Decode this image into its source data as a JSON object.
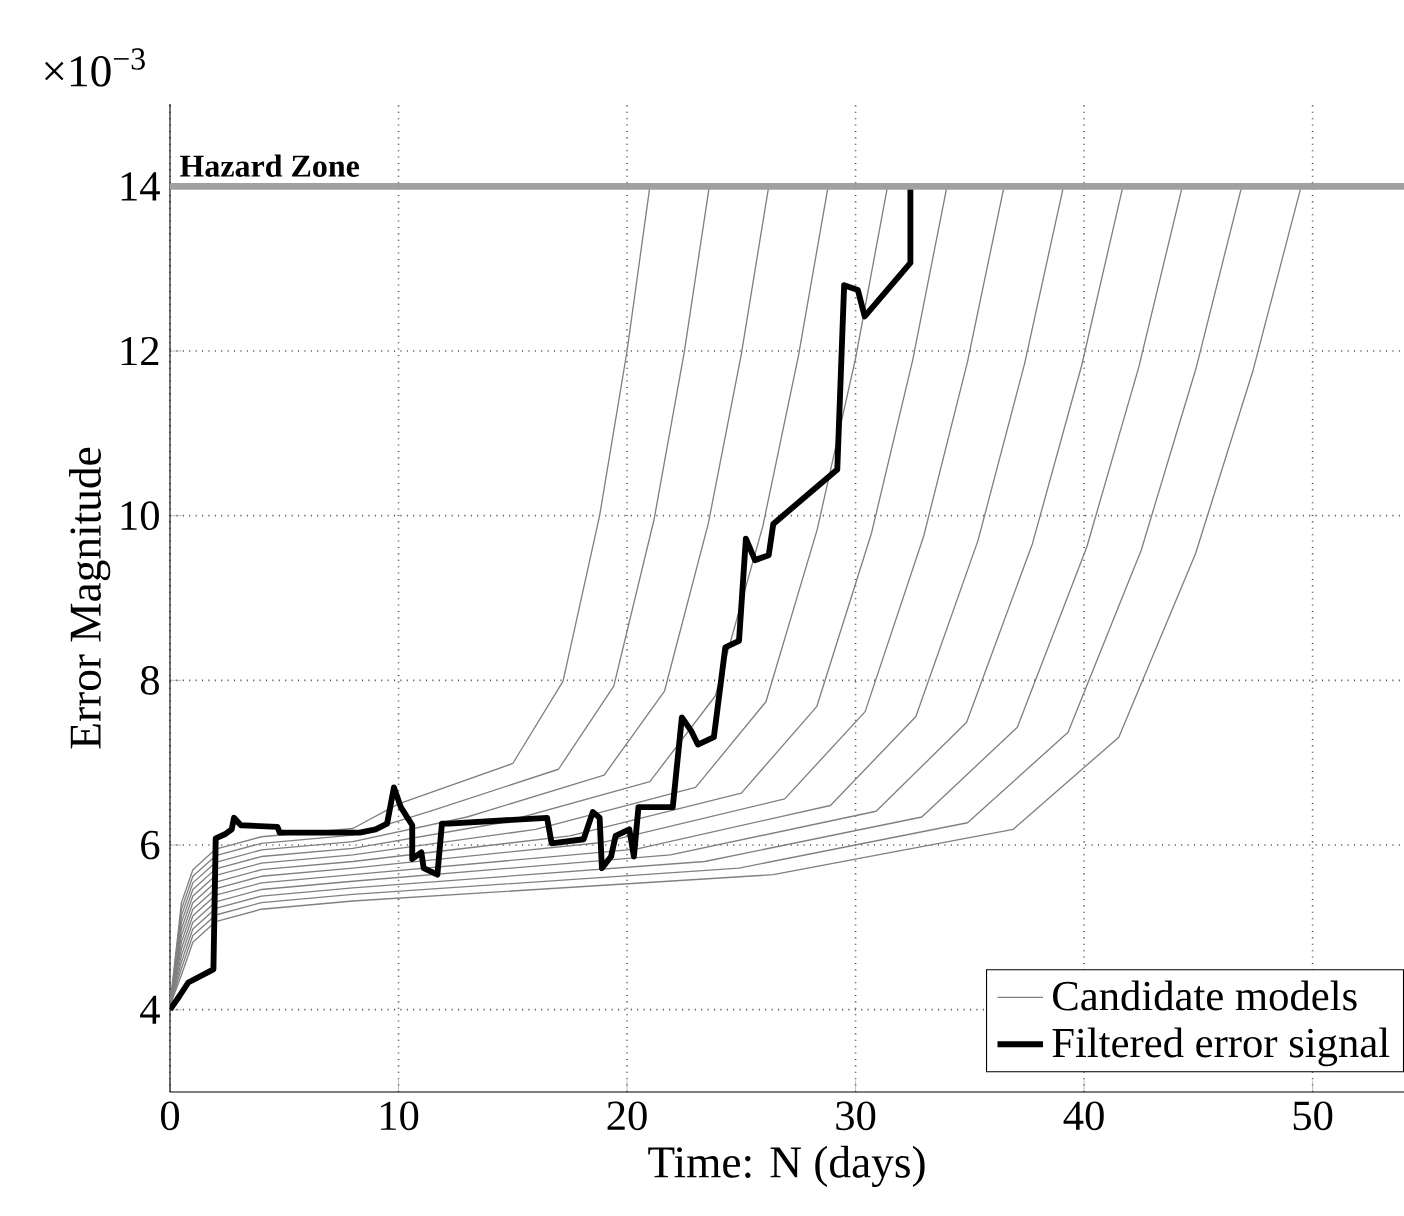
{
  "chart_data": {
    "type": "line",
    "xlabel": "Time: N (days)",
    "ylabel": "Error Magnitude",
    "annotations": [
      "×10$^{−3}$"
    ],
    "xlim": [
      0,
      54
    ],
    "ylim": [
      3,
      15
    ],
    "xticks": [
      0,
      10,
      20,
      30,
      40,
      50
    ],
    "yticks": [
      4,
      6,
      8,
      10,
      12,
      14
    ],
    "grid": true,
    "legend": "bottom right",
    "line_style": "solid",
    "marker": "none",
    "ref_lines": [
      {
        "axis": "y",
        "value": 14,
        "label": "Hazard Zone",
        "color": "#a0a0a0"
      }
    ],
    "series": [
      {
        "name": "Candidate models",
        "color": "#808080",
        "x": [
          0,
          0.5,
          1,
          2,
          4,
          8,
          10,
          15,
          17.2,
          18.8,
          20,
          21
        ],
        "values": [
          4.05,
          5.3,
          5.7,
          5.95,
          6.1,
          6.2,
          6.5,
          6.99,
          7.99,
          10.0,
          12.0,
          14
        ]
      },
      {
        "color": "#808080",
        "x": [
          0,
          0.5,
          1,
          2,
          4,
          8,
          11.5,
          17.0,
          19.42,
          21.18,
          22.5,
          23.6
        ],
        "values": [
          4.05,
          5.22,
          5.62,
          5.87,
          6.02,
          6.12,
          6.42,
          6.92,
          7.93,
          9.95,
          11.98,
          14
        ]
      },
      {
        "color": "#808080",
        "x": [
          0,
          0.5,
          1,
          2,
          4,
          8,
          13.0,
          19.0,
          21.64,
          23.56,
          25.0,
          26.2
        ],
        "values": [
          4.05,
          5.14,
          5.54,
          5.79,
          5.94,
          6.04,
          6.34,
          6.85,
          7.87,
          9.91,
          11.96,
          14
        ]
      },
      {
        "color": "#808080",
        "x": [
          0,
          0.5,
          1,
          2,
          4,
          8,
          14.5,
          21.0,
          23.86,
          25.94,
          27.5,
          28.8
        ],
        "values": [
          4.05,
          5.06,
          5.46,
          5.71,
          5.86,
          5.96,
          6.27,
          6.77,
          7.81,
          9.87,
          11.94,
          14
        ]
      },
      {
        "color": "#808080",
        "x": [
          0,
          0.5,
          1,
          2,
          4,
          8,
          16.0,
          23.0,
          26.08,
          28.32,
          30.0,
          31.4
        ],
        "values": [
          4.05,
          4.98,
          5.38,
          5.63,
          5.78,
          5.88,
          6.19,
          6.7,
          7.74,
          9.83,
          11.91,
          14
        ]
      },
      {
        "color": "#808080",
        "x": [
          0,
          0.5,
          1,
          2,
          4,
          8,
          17.5,
          25.0,
          28.3,
          30.7,
          32.5,
          34
        ],
        "values": [
          4.05,
          4.9,
          5.3,
          5.55,
          5.7,
          5.8,
          6.11,
          6.63,
          7.68,
          9.79,
          11.89,
          14
        ]
      },
      {
        "color": "#808080",
        "x": [
          0,
          0.5,
          1,
          2,
          4,
          8,
          18.9,
          26.9,
          30.42,
          32.98,
          34.9,
          36.5
        ],
        "values": [
          4.05,
          4.82,
          5.22,
          5.47,
          5.62,
          5.72,
          6.03,
          6.56,
          7.62,
          9.75,
          11.87,
          14
        ]
      },
      {
        "color": "#808080",
        "x": [
          0,
          0.5,
          1,
          2,
          4,
          8,
          20.4,
          28.9,
          32.64,
          35.36,
          37.4,
          39.1
        ],
        "values": [
          4.05,
          4.74,
          5.14,
          5.39,
          5.54,
          5.64,
          5.95,
          6.48,
          7.56,
          9.7,
          11.85,
          14
        ]
      },
      {
        "color": "#808080",
        "x": [
          0,
          0.5,
          1,
          2,
          4,
          8,
          21.9,
          30.9,
          34.86,
          37.74,
          39.9,
          41.7
        ],
        "values": [
          4.05,
          4.66,
          5.06,
          5.31,
          5.46,
          5.56,
          5.88,
          6.41,
          7.49,
          9.66,
          11.83,
          14
        ]
      },
      {
        "color": "#808080",
        "x": [
          0,
          0.5,
          1,
          2,
          4,
          8,
          23.4,
          32.9,
          37.08,
          40.12,
          42.4,
          44.3
        ],
        "values": [
          4.05,
          4.58,
          4.98,
          5.23,
          5.38,
          5.48,
          5.8,
          6.34,
          7.43,
          9.62,
          11.81,
          14
        ]
      },
      {
        "color": "#808080",
        "x": [
          0,
          0.5,
          1,
          2,
          4,
          8,
          24.9,
          34.9,
          39.3,
          42.5,
          44.9,
          46.9
        ],
        "values": [
          4.05,
          4.5,
          4.9,
          5.15,
          5.3,
          5.4,
          5.72,
          6.27,
          7.37,
          9.58,
          11.79,
          14
        ]
      },
      {
        "color": "#808080",
        "x": [
          0,
          0.5,
          1,
          2,
          4,
          8,
          26.4,
          36.9,
          41.52,
          44.88,
          47.4,
          49.5
        ],
        "values": [
          4.05,
          4.42,
          4.82,
          5.07,
          5.22,
          5.32,
          5.64,
          6.19,
          7.31,
          9.54,
          11.77,
          14
        ]
      },
      {
        "name": "Filtered error signal",
        "color": "#000000",
        "x": [
          0,
          0.4,
          0.8,
          1.9,
          2.0,
          2.4,
          2.7,
          2.8,
          3.1,
          4.7,
          4.8,
          8.3,
          9.0,
          9.5,
          9.8,
          10.1,
          10.6,
          10.6,
          11.0,
          11.1,
          11.7,
          11.9,
          12.2,
          16.5,
          16.7,
          18.1,
          18.5,
          18.8,
          18.9,
          19.3,
          19.5,
          20.1,
          20.3,
          20.5,
          22.0,
          22.4,
          22.8,
          23.1,
          23.8,
          24.3,
          24.9,
          25.2,
          25.6,
          26.2,
          26.4,
          29.2,
          29.5,
          30.1,
          30.4,
          32.4,
          32.4
        ],
        "values": [
          4.0,
          4.16,
          4.33,
          4.49,
          6.08,
          6.13,
          6.19,
          6.33,
          6.24,
          6.22,
          6.15,
          6.15,
          6.19,
          6.26,
          6.7,
          6.46,
          6.24,
          5.83,
          5.91,
          5.72,
          5.64,
          6.26,
          6.26,
          6.33,
          6.02,
          6.07,
          6.4,
          6.33,
          5.72,
          5.86,
          6.11,
          6.19,
          5.86,
          6.46,
          6.46,
          7.55,
          7.39,
          7.22,
          7.31,
          8.4,
          8.48,
          9.72,
          9.46,
          9.52,
          9.9,
          10.56,
          12.8,
          12.74,
          12.42,
          13.07,
          14.0
        ]
      }
    ]
  }
}
